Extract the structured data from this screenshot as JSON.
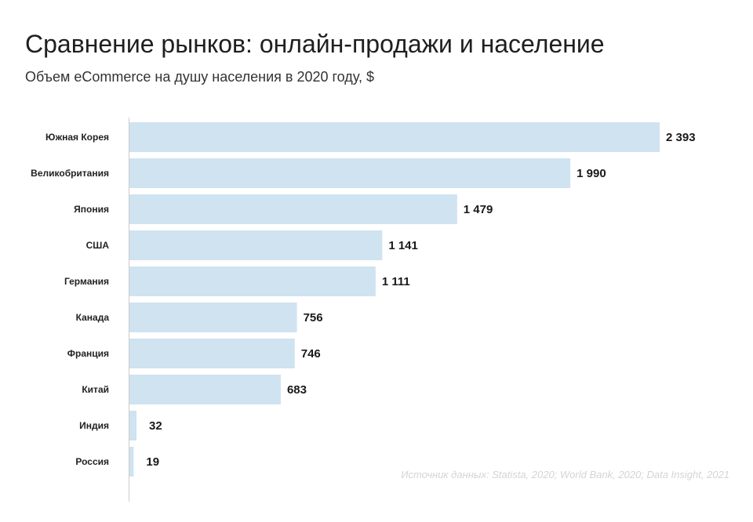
{
  "title": "Сравнение рынков: онлайн-продажи и население",
  "subtitle": "Объем eCommerce на душу населения в 2020 году, $",
  "source": "Источник данных: Statista, 2020; World Bank, 2020; Data Insight, 2021",
  "colors": {
    "bar": "#cfe3f1",
    "axis": "#cccccc"
  },
  "chart_data": {
    "type": "bar",
    "orientation": "horizontal",
    "categories": [
      "Южная Корея",
      "Великобритания",
      "Япония",
      "США",
      "Германия",
      "Канада",
      "Франция",
      "Китай",
      "Индия",
      "Россия"
    ],
    "values": [
      2393,
      1990,
      1479,
      1141,
      1111,
      756,
      746,
      683,
      32,
      19
    ],
    "value_labels": [
      "2 393",
      "1 990",
      "1 479",
      "1 141",
      "1 111",
      "756",
      "746",
      "683",
      "32",
      "19"
    ],
    "xlim": [
      0,
      2393
    ],
    "grid": false,
    "legend": "none"
  }
}
